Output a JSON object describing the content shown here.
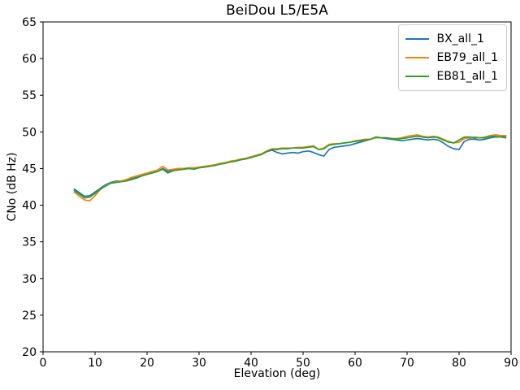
{
  "chart_data": {
    "type": "line",
    "title": "BeiDou L5/E5A",
    "xlabel": "Elevation (deg)",
    "ylabel": "CNo (dB Hz)",
    "xlim": [
      0,
      90
    ],
    "ylim": [
      20,
      65
    ],
    "xticks": [
      0,
      10,
      20,
      30,
      40,
      50,
      60,
      70,
      80,
      90
    ],
    "yticks": [
      20,
      25,
      30,
      35,
      40,
      45,
      50,
      55,
      60,
      65
    ],
    "grid": false,
    "legend_position": "upper right",
    "x": [
      6,
      7,
      8,
      9,
      10,
      11,
      12,
      13,
      14,
      15,
      16,
      17,
      18,
      19,
      20,
      21,
      22,
      23,
      24,
      25,
      26,
      27,
      28,
      29,
      30,
      31,
      32,
      33,
      34,
      35,
      36,
      37,
      38,
      39,
      40,
      41,
      42,
      43,
      44,
      45,
      46,
      47,
      48,
      49,
      50,
      51,
      52,
      53,
      54,
      55,
      56,
      57,
      58,
      59,
      60,
      61,
      62,
      63,
      64,
      65,
      66,
      67,
      68,
      69,
      70,
      71,
      72,
      73,
      74,
      75,
      76,
      77,
      78,
      79,
      80,
      81,
      82,
      83,
      84,
      85,
      86,
      87,
      88,
      89
    ],
    "series": [
      {
        "name": "BX_all_1",
        "color": "#1f77b4",
        "values": [
          42.2,
          41.7,
          41.2,
          41.3,
          41.8,
          42.3,
          42.8,
          43.1,
          43.3,
          43.3,
          43.4,
          43.6,
          43.8,
          44.0,
          44.3,
          44.5,
          44.6,
          45.0,
          44.6,
          44.8,
          44.9,
          44.9,
          45.0,
          45.0,
          45.1,
          45.2,
          45.3,
          45.5,
          45.6,
          45.8,
          45.9,
          46.0,
          46.2,
          46.4,
          46.6,
          46.8,
          47.0,
          47.3,
          47.5,
          47.2,
          47.0,
          47.1,
          47.2,
          47.1,
          47.3,
          47.4,
          47.2,
          46.9,
          46.7,
          47.6,
          47.9,
          48.0,
          48.1,
          48.2,
          48.4,
          48.6,
          48.8,
          49.0,
          49.3,
          49.2,
          49.1,
          49.0,
          48.9,
          48.8,
          48.9,
          49.0,
          49.1,
          49.0,
          48.9,
          49.0,
          48.9,
          48.5,
          48.0,
          47.7,
          47.6,
          48.7,
          49.0,
          49.0,
          48.9,
          49.0,
          49.2,
          49.3,
          49.3,
          49.4
        ]
      },
      {
        "name": "EB79_all_1",
        "color": "#ff7f0e",
        "values": [
          41.8,
          41.2,
          40.7,
          40.6,
          41.3,
          42.1,
          42.7,
          43.0,
          43.2,
          43.3,
          43.5,
          43.8,
          44.0,
          44.2,
          44.4,
          44.6,
          44.8,
          45.3,
          44.8,
          44.9,
          45.0,
          45.0,
          45.1,
          45.1,
          45.2,
          45.3,
          45.4,
          45.5,
          45.7,
          45.8,
          46.0,
          46.1,
          46.3,
          46.4,
          46.6,
          46.8,
          47.0,
          47.4,
          47.7,
          47.7,
          47.8,
          47.8,
          47.8,
          47.9,
          47.9,
          48.0,
          48.1,
          47.6,
          47.8,
          48.3,
          48.4,
          48.4,
          48.5,
          48.6,
          48.8,
          48.9,
          49.0,
          49.0,
          49.2,
          49.2,
          49.2,
          49.1,
          49.1,
          49.2,
          49.4,
          49.5,
          49.6,
          49.4,
          49.3,
          49.4,
          49.3,
          49.0,
          48.7,
          48.5,
          48.6,
          49.1,
          49.2,
          49.3,
          49.2,
          49.3,
          49.5,
          49.6,
          49.5,
          49.5
        ]
      },
      {
        "name": "EB81_all_1",
        "color": "#2ca02c",
        "values": [
          42.0,
          41.5,
          41.0,
          41.1,
          41.6,
          42.2,
          42.6,
          43.0,
          43.1,
          43.2,
          43.3,
          43.5,
          43.7,
          44.0,
          44.2,
          44.4,
          44.6,
          44.9,
          44.4,
          44.7,
          44.8,
          44.9,
          45.0,
          44.9,
          45.1,
          45.2,
          45.3,
          45.4,
          45.6,
          45.7,
          45.9,
          46.0,
          46.2,
          46.3,
          46.5,
          46.7,
          46.9,
          47.3,
          47.6,
          47.6,
          47.7,
          47.7,
          47.8,
          47.8,
          47.8,
          47.9,
          48.0,
          47.6,
          47.7,
          48.2,
          48.3,
          48.4,
          48.5,
          48.6,
          48.7,
          48.8,
          48.9,
          49.0,
          49.3,
          49.2,
          49.2,
          49.1,
          49.0,
          49.1,
          49.2,
          49.3,
          49.4,
          49.3,
          49.2,
          49.3,
          49.2,
          48.9,
          48.6,
          48.5,
          48.9,
          49.3,
          49.3,
          49.2,
          49.2,
          49.2,
          49.4,
          49.4,
          49.3,
          49.2
        ]
      }
    ]
  }
}
